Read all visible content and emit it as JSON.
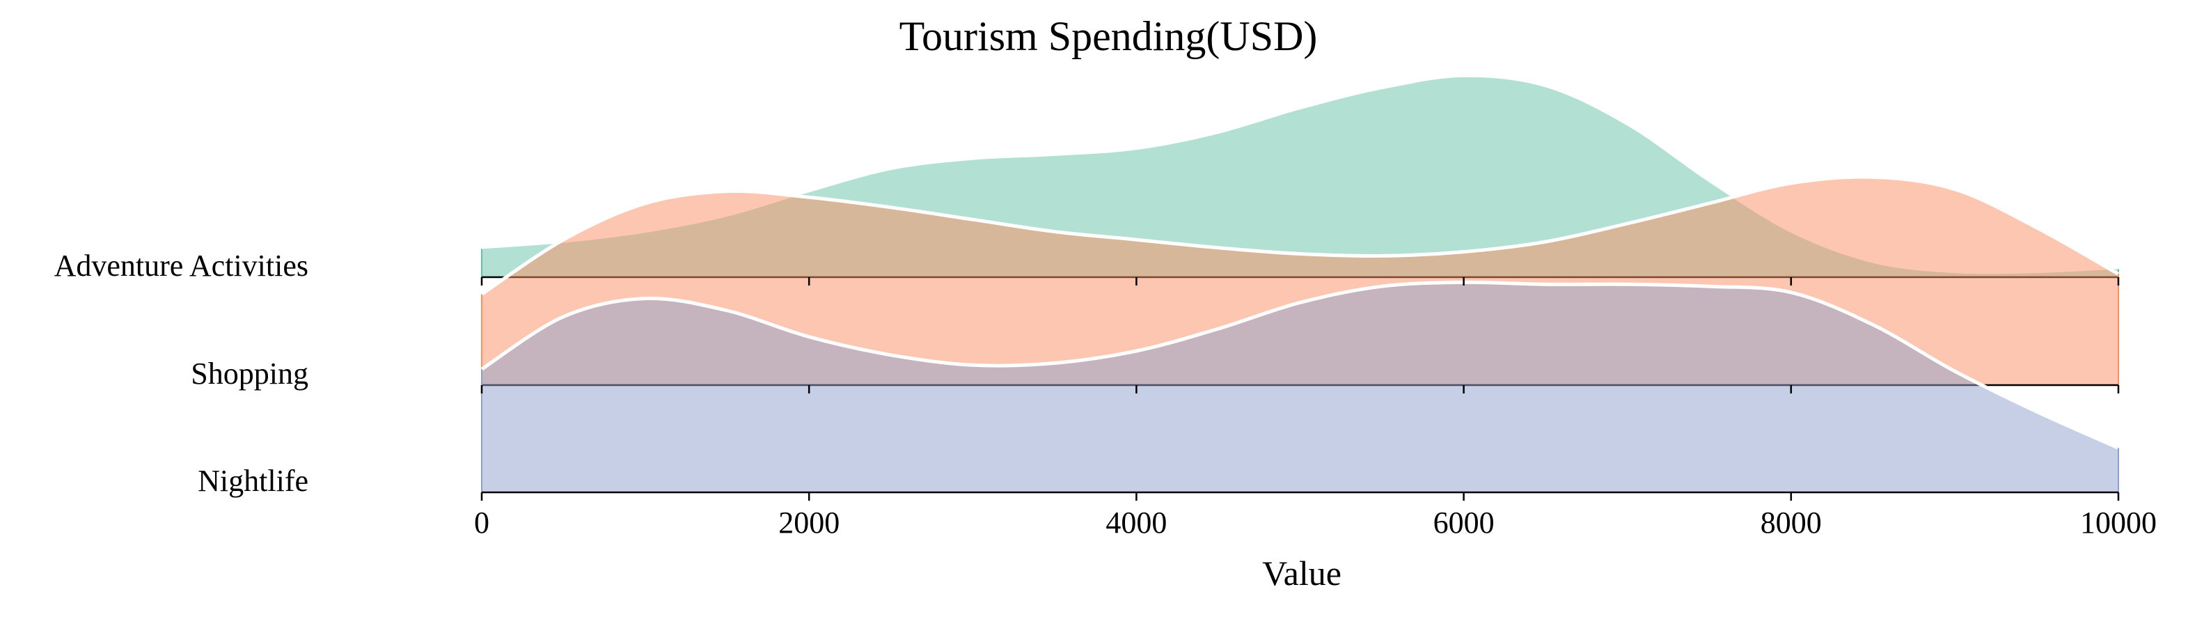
{
  "chart_data": {
    "type": "ridgeline",
    "title": "Tourism Spending(USD)",
    "xlabel": "Value",
    "ylabel": "",
    "xlim": [
      0,
      10000
    ],
    "x_ticks": [
      0,
      2000,
      4000,
      6000,
      8000,
      10000
    ],
    "x_tick_labels": [
      "0",
      "2000",
      "4000",
      "6000",
      "8000",
      "10000"
    ],
    "categories": [
      "Adventure Activities",
      "Shopping",
      "Nightlife"
    ],
    "grid": false,
    "legend": "none",
    "series": [
      {
        "name": "Adventure Activities",
        "color": "#66c2a5",
        "x": [
          0,
          500,
          1000,
          1500,
          2000,
          2500,
          3000,
          3500,
          4000,
          4500,
          5000,
          5500,
          6000,
          6500,
          7000,
          7500,
          8000,
          8500,
          9000,
          9500,
          10000
        ],
        "density": [
          0.14,
          0.17,
          0.22,
          0.3,
          0.42,
          0.53,
          0.58,
          0.6,
          0.63,
          0.71,
          0.83,
          0.93,
          0.99,
          0.94,
          0.75,
          0.47,
          0.22,
          0.07,
          0.02,
          0.02,
          0.04
        ]
      },
      {
        "name": "Shopping",
        "color": "#fc8d62",
        "x": [
          0,
          500,
          1000,
          1500,
          2000,
          2500,
          3000,
          3500,
          4000,
          4500,
          5000,
          5500,
          6000,
          6500,
          7000,
          7500,
          8000,
          8500,
          9000,
          9500,
          10000
        ],
        "density": [
          0.45,
          0.72,
          0.9,
          0.96,
          0.93,
          0.88,
          0.82,
          0.76,
          0.72,
          0.68,
          0.65,
          0.64,
          0.66,
          0.71,
          0.8,
          0.9,
          1.0,
          1.03,
          0.97,
          0.78,
          0.55
        ]
      },
      {
        "name": "Nightlife",
        "color": "#8da0cb",
        "x": [
          0,
          500,
          1000,
          1500,
          2000,
          2500,
          3000,
          3500,
          4000,
          4500,
          5000,
          5500,
          6000,
          6500,
          7000,
          7500,
          8000,
          8500,
          9000,
          9500,
          10000
        ],
        "density": [
          0.61,
          0.87,
          0.96,
          0.9,
          0.77,
          0.68,
          0.63,
          0.64,
          0.7,
          0.81,
          0.94,
          1.02,
          1.04,
          1.03,
          1.03,
          1.02,
          0.99,
          0.83,
          0.6,
          0.4,
          0.22
        ]
      }
    ]
  }
}
